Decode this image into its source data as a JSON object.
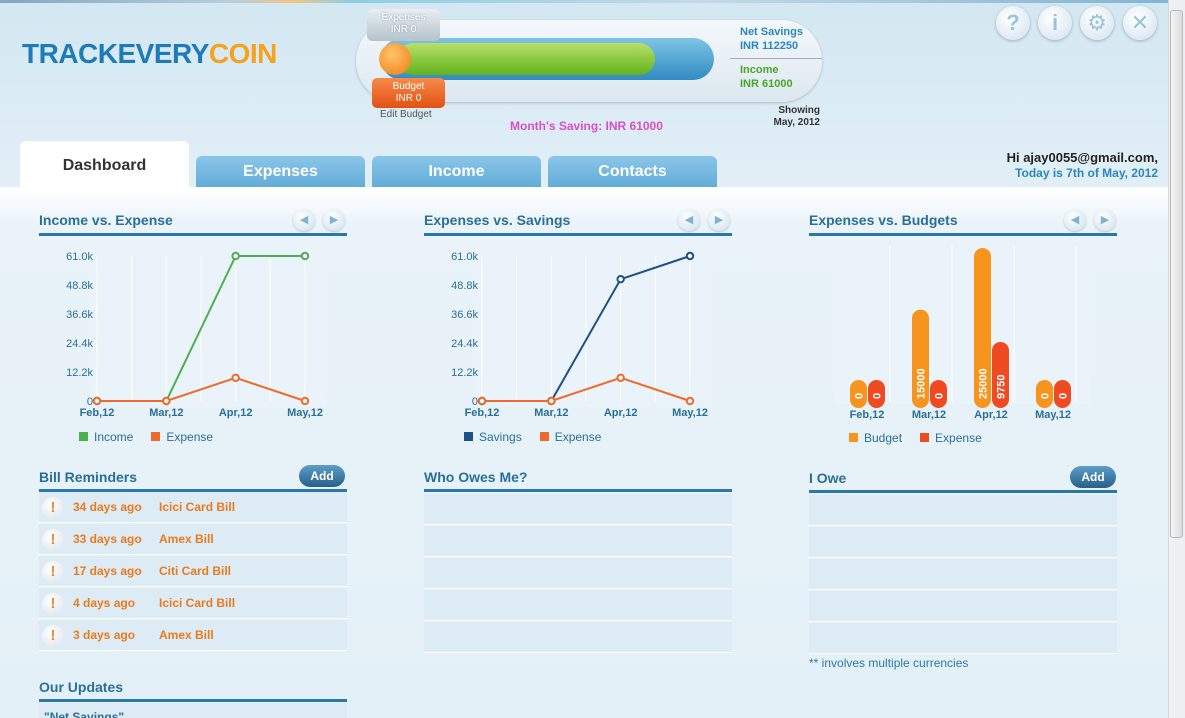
{
  "app": {
    "logo_text_a": "TRACKEVERY",
    "logo_text_b": "COIN"
  },
  "meter": {
    "expenses_label": "Expenses",
    "expenses_value": "INR 0",
    "budget_label": "Budget",
    "budget_value": "INR 0",
    "edit_budget": "Edit Budget",
    "net_savings_label": "Net Savings",
    "net_savings_value": "INR 112250",
    "income_label": "Income",
    "income_value": "INR 61000",
    "showing_label": "Showing",
    "showing_value": "May, 2012",
    "month_saving": "Month's Saving: INR 61000",
    "savings_fraction": 0.86
  },
  "header": {
    "icons": [
      "help-icon",
      "user-icon",
      "gear-icon",
      "close-icon"
    ],
    "icon_glyphs": [
      "?",
      "i",
      "⚙",
      "✕"
    ],
    "greeting": "Hi ajay0055@gmail.com,",
    "today": "Today is 7th of May, 2012"
  },
  "tabs": [
    "Dashboard",
    "Expenses",
    "Income",
    "Contacts"
  ],
  "panels": {
    "income_vs_expense": "Income vs. Expense",
    "expenses_vs_savings": "Expenses vs. Savings",
    "expenses_vs_budgets": "Expenses vs. Budgets",
    "bill_reminders": "Bill Reminders",
    "who_owes_me": "Who Owes Me?",
    "i_owe": "I Owe",
    "our_updates": "Our Updates",
    "add_label": "Add",
    "updates_first": "\"Net Savings\"",
    "note": "** involves multiple currencies"
  },
  "colors": {
    "income": "#4caf50",
    "expense": "#ee6a2c",
    "savings": "#1e4f86",
    "budget": "#f7941d",
    "expense_bar": "#ee4b23"
  },
  "chart_data": [
    {
      "type": "line",
      "title": "Income vs. Expense",
      "categories": [
        "Feb,12",
        "Mar,12",
        "Apr,12",
        "May,12"
      ],
      "ylim": [
        0,
        61000
      ],
      "yticks": [
        "0",
        "12.2k",
        "24.4k",
        "36.6k",
        "48.8k",
        "61.0k"
      ],
      "series": [
        {
          "name": "Income",
          "values": [
            0,
            0,
            61000,
            61000
          ]
        },
        {
          "name": "Expense",
          "values": [
            0,
            0,
            9750,
            0
          ]
        }
      ],
      "legend": "bottom"
    },
    {
      "type": "line",
      "title": "Expenses vs. Savings",
      "categories": [
        "Feb,12",
        "Mar,12",
        "Apr,12",
        "May,12"
      ],
      "ylim": [
        0,
        61000
      ],
      "yticks": [
        "0",
        "12.2k",
        "24.4k",
        "36.6k",
        "48.8k",
        "61.0k"
      ],
      "series": [
        {
          "name": "Savings",
          "values": [
            0,
            0,
            51250,
            61000
          ]
        },
        {
          "name": "Expense",
          "values": [
            0,
            0,
            9750,
            0
          ]
        }
      ],
      "legend": "bottom"
    },
    {
      "type": "bar",
      "title": "Expenses vs. Budgets",
      "categories": [
        "Feb,12",
        "Mar,12",
        "Apr,12",
        "May,12"
      ],
      "ylim": [
        0,
        25000
      ],
      "series": [
        {
          "name": "Budget",
          "values": [
            0,
            15000,
            25000,
            0
          ],
          "labels": [
            "0",
            "15000",
            "25000",
            "0"
          ]
        },
        {
          "name": "Expense",
          "values": [
            0,
            0,
            9750,
            0
          ],
          "labels": [
            "0",
            "0",
            "9750",
            "0"
          ]
        }
      ],
      "legend": "bottom"
    }
  ],
  "bills": [
    {
      "days": "34 days ago",
      "name": "Icici Card Bill"
    },
    {
      "days": "33 days ago",
      "name": "Amex Bill"
    },
    {
      "days": "17 days ago",
      "name": "Citi Card Bill"
    },
    {
      "days": "4 days ago",
      "name": "Icici Card Bill"
    },
    {
      "days": "3 days ago",
      "name": "Amex Bill"
    }
  ]
}
